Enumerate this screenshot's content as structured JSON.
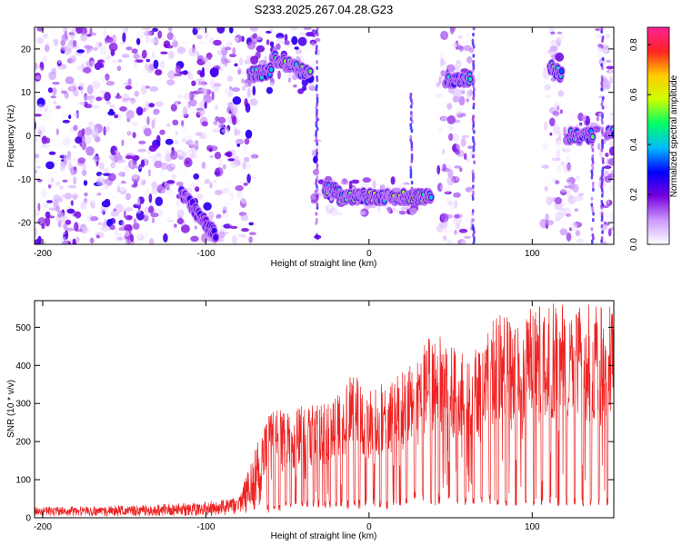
{
  "page": {
    "title": "S233.2025.267.04.28.G23"
  },
  "chart_data": [
    {
      "type": "heatmap",
      "title": "S233.2025.267.04.28.G23",
      "xlabel": "Height of straight line (km)",
      "ylabel": "Frequency (Hz)",
      "xlim": [
        -205,
        150
      ],
      "ylim": [
        -25,
        25
      ],
      "xticks": [
        -200,
        -100,
        0,
        100
      ],
      "yticks": [
        -20,
        -10,
        0,
        10,
        20
      ],
      "grid": false,
      "colorbar": {
        "label": "Normalized spectral amplitude",
        "range": [
          0,
          0.87
        ],
        "ticks": [
          0.0,
          0.2,
          0.4,
          0.6,
          0.8
        ],
        "colormap": [
          "#ffffff",
          "#cc99ff",
          "#7700dd",
          "#0000ff",
          "#00bbff",
          "#00ff66",
          "#ccff00",
          "#ffcc00",
          "#ff2222",
          "#ff2299"
        ]
      },
      "ridge": [
        {
          "x": [
            -115,
            -94
          ],
          "f": [
            -13,
            -23
          ],
          "amp": 0.3
        },
        {
          "x": [
            -73,
            -60
          ],
          "f": [
            14,
            15
          ],
          "amp": 0.45
        },
        {
          "x": [
            -59,
            -36
          ],
          "f": [
            18,
            14
          ],
          "amp": 0.55
        },
        {
          "x": [
            -27,
            -18
          ],
          "f": [
            -12,
            -13
          ],
          "amp": 0.5
        },
        {
          "x": [
            -18,
            38
          ],
          "f": [
            -14,
            -14
          ],
          "amp": 0.6
        },
        {
          "x": [
            47,
            62
          ],
          "f": [
            13,
            13
          ],
          "amp": 0.45
        },
        {
          "x": [
            111,
            118
          ],
          "f": [
            16,
            14
          ],
          "amp": 0.5
        },
        {
          "x": [
            121,
            137
          ],
          "f": [
            0,
            0
          ],
          "amp": 0.5
        },
        {
          "x": [
            146,
            150
          ],
          "f": [
            1,
            1
          ],
          "amp": 0.5
        }
      ],
      "quiet_gaps": [
        {
          "x": [
            -70,
            -34
          ],
          "f": [
            -25,
            10
          ]
        },
        {
          "x": [
            -31,
            28
          ],
          "f": [
            -10,
            25
          ]
        },
        {
          "x": [
            -31,
            28
          ],
          "f": [
            -25,
            -18
          ]
        },
        {
          "x": [
            28,
            42
          ],
          "f": [
            -25,
            25
          ]
        },
        {
          "x": [
            64,
            107
          ],
          "f": [
            -25,
            25
          ]
        },
        {
          "x": [
            118,
            140
          ],
          "f": [
            5,
            25
          ]
        },
        {
          "x": [
            130,
            142
          ],
          "f": [
            -25,
            -3
          ]
        }
      ]
    },
    {
      "type": "line",
      "xlabel": "Height of straight line (km)",
      "ylabel": "SNR (10 * v/v)",
      "xlim": [
        -205,
        150
      ],
      "ylim": [
        0,
        570
      ],
      "xticks": [
        -200,
        -100,
        0,
        100
      ],
      "yticks": [
        0,
        100,
        200,
        300,
        400,
        500
      ],
      "grid": false,
      "series": [
        {
          "color": "#ee2222",
          "envelope": {
            "x": [
              -205,
              -150,
              -100,
              -80,
              -65,
              -60,
              -50,
              -40,
              -30,
              -20,
              -10,
              0,
              10,
              20,
              30,
              40,
              50,
              60,
              70,
              80,
              90,
              100,
              110,
              120,
              130,
              140,
              150
            ],
            "high": [
              28,
              32,
              42,
              55,
              240,
              290,
              280,
              300,
              310,
              320,
              380,
              340,
              360,
              380,
              440,
              500,
              460,
              420,
              480,
              550,
              500,
              560,
              560,
              570,
              560,
              560,
              560
            ],
            "low": [
              4,
              4,
              4,
              6,
              10,
              15,
              20,
              25,
              25,
              25,
              20,
              30,
              20,
              30,
              50,
              30,
              40,
              30,
              40,
              30,
              30,
              30,
              30,
              30,
              30,
              30,
              30
            ]
          }
        }
      ]
    }
  ]
}
